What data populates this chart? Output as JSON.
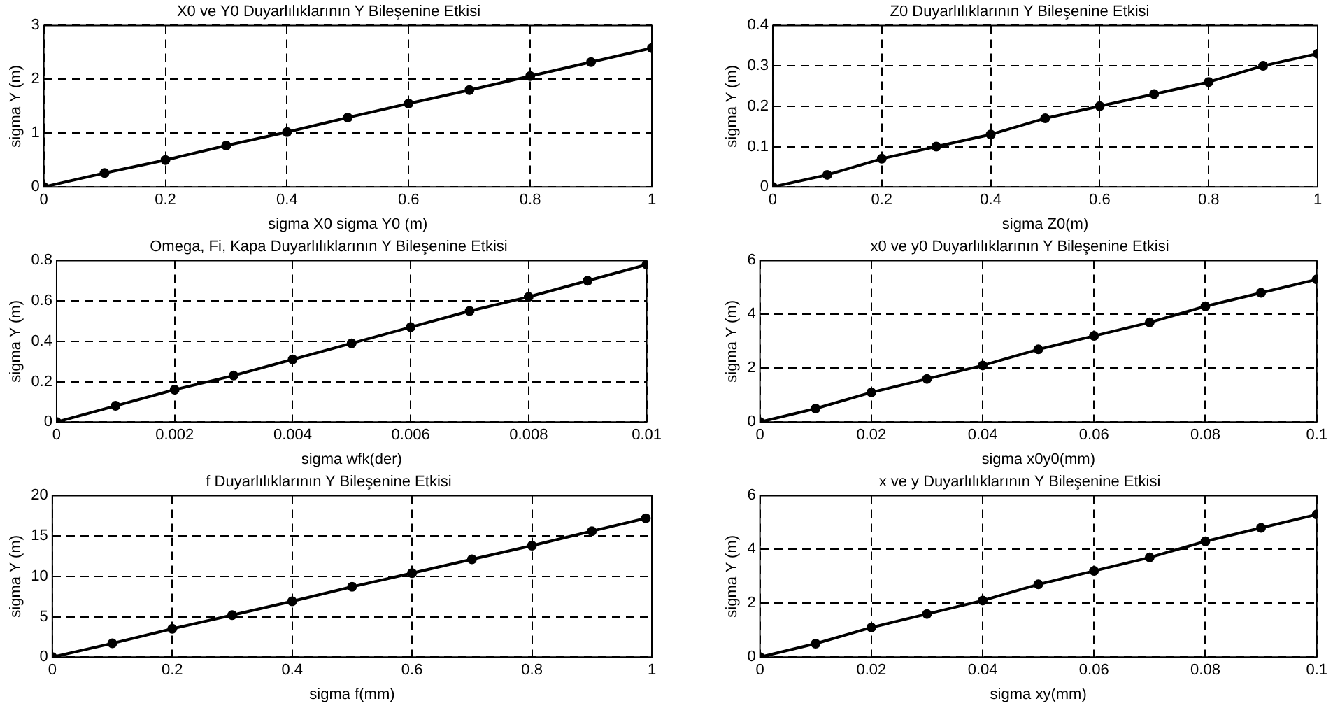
{
  "chart_data": [
    {
      "type": "line",
      "title": "X0 ve Y0 Duyarlılıklarının Y Bileşenine Etkisi",
      "xlabel": "sigma X0 sigma Y0 (m)",
      "ylabel": "sigma Y (m)",
      "x": [
        0,
        0.1,
        0.2,
        0.3,
        0.4,
        0.5,
        0.6,
        0.7,
        0.8,
        0.9,
        1
      ],
      "series": [
        {
          "color": "#000000",
          "values": [
            0,
            0.26,
            0.5,
            0.77,
            1.02,
            1.29,
            1.55,
            1.8,
            2.06,
            2.32,
            2.58
          ]
        }
      ],
      "xlim": [
        0,
        1
      ],
      "xticks": [
        0,
        0.2,
        0.4,
        0.6,
        0.8,
        1
      ],
      "ylim": [
        0,
        3
      ],
      "yticks": [
        0,
        1,
        2,
        3
      ],
      "grid": true,
      "marker": "circle",
      "line_style": "solid"
    },
    {
      "type": "line",
      "title": "Z0 Duyarlılıklarının Y Bileşenine Etkisi",
      "xlabel": "sigma Z0(m)",
      "ylabel": "sigma Y (m)",
      "x": [
        0,
        0.1,
        0.2,
        0.3,
        0.4,
        0.5,
        0.6,
        0.7,
        0.8,
        0.9,
        1
      ],
      "series": [
        {
          "color": "#000000",
          "values": [
            0,
            0.03,
            0.07,
            0.1,
            0.13,
            0.17,
            0.2,
            0.23,
            0.26,
            0.3,
            0.33
          ]
        }
      ],
      "xlim": [
        0,
        1
      ],
      "xticks": [
        0,
        0.2,
        0.4,
        0.6,
        0.8,
        1
      ],
      "ylim": [
        0,
        0.4
      ],
      "yticks": [
        0,
        0.1,
        0.2,
        0.3,
        0.4
      ],
      "grid": true,
      "marker": "circle",
      "line_style": "solid"
    },
    {
      "type": "line",
      "title": "Omega, Fi, Kapa Duyarlılıklarının Y Bileşenine Etkisi",
      "xlabel": "sigma wfk(der)",
      "ylabel": "sigma Y (m)",
      "x": [
        0,
        0.001,
        0.002,
        0.003,
        0.004,
        0.005,
        0.006,
        0.007,
        0.008,
        0.009,
        0.01
      ],
      "series": [
        {
          "color": "#000000",
          "values": [
            0,
            0.08,
            0.16,
            0.23,
            0.31,
            0.39,
            0.47,
            0.55,
            0.62,
            0.7,
            0.78
          ]
        }
      ],
      "xlim": [
        0,
        0.01
      ],
      "xticks": [
        0,
        0.002,
        0.004,
        0.006,
        0.008,
        0.01
      ],
      "ylim": [
        0,
        0.8
      ],
      "yticks": [
        0,
        0.2,
        0.4,
        0.6,
        0.8
      ],
      "grid": true,
      "marker": "circle",
      "line_style": "solid"
    },
    {
      "type": "line",
      "title": "x0 ve y0 Duyarlılıklarının Y Bileşenine Etkisi",
      "xlabel": "sigma x0y0(mm)",
      "ylabel": "sigma Y (m)",
      "x": [
        0,
        0.01,
        0.02,
        0.03,
        0.04,
        0.05,
        0.06,
        0.07,
        0.08,
        0.09,
        0.1
      ],
      "series": [
        {
          "color": "#000000",
          "values": [
            0,
            0.5,
            1.1,
            1.6,
            2.1,
            2.7,
            3.2,
            3.7,
            4.3,
            4.8,
            5.3
          ]
        }
      ],
      "xlim": [
        0,
        0.1
      ],
      "xticks": [
        0,
        0.02,
        0.04,
        0.06,
        0.08,
        0.1
      ],
      "ylim": [
        0,
        6
      ],
      "yticks": [
        0,
        2,
        4,
        6
      ],
      "grid": true,
      "marker": "circle",
      "line_style": "solid"
    },
    {
      "type": "line",
      "title": "f Duyarlılıklarının Y Bileşenine Etkisi",
      "xlabel": "sigma f(mm)",
      "ylabel": "sigma Y (m)",
      "x": [
        0,
        0.1,
        0.2,
        0.3,
        0.4,
        0.5,
        0.6,
        0.7,
        0.8,
        0.9,
        0.99
      ],
      "series": [
        {
          "color": "#000000",
          "values": [
            0,
            1.7,
            3.5,
            5.2,
            6.9,
            8.7,
            10.4,
            12.1,
            13.8,
            15.6,
            17.2
          ]
        }
      ],
      "xlim": [
        0,
        1
      ],
      "xticks": [
        0,
        0.2,
        0.4,
        0.6,
        0.8,
        1
      ],
      "ylim": [
        0,
        20
      ],
      "yticks": [
        0,
        5,
        10,
        15,
        20
      ],
      "grid": true,
      "marker": "circle",
      "line_style": "solid"
    },
    {
      "type": "line",
      "title": "x ve y Duyarlılıklarının Y Bileşenine Etkisi",
      "xlabel": "sigma xy(mm)",
      "ylabel": "sigma Y (m)",
      "x": [
        0,
        0.01,
        0.02,
        0.03,
        0.04,
        0.05,
        0.06,
        0.07,
        0.08,
        0.09,
        0.1
      ],
      "series": [
        {
          "color": "#000000",
          "values": [
            0,
            0.5,
            1.1,
            1.6,
            2.1,
            2.7,
            3.2,
            3.7,
            4.3,
            4.8,
            5.3
          ]
        }
      ],
      "xlim": [
        0,
        0.1
      ],
      "xticks": [
        0,
        0.02,
        0.04,
        0.06,
        0.08,
        0.1
      ],
      "ylim": [
        0,
        6
      ],
      "yticks": [
        0,
        2,
        4,
        6
      ],
      "grid": true,
      "marker": "circle",
      "line_style": "solid"
    }
  ]
}
